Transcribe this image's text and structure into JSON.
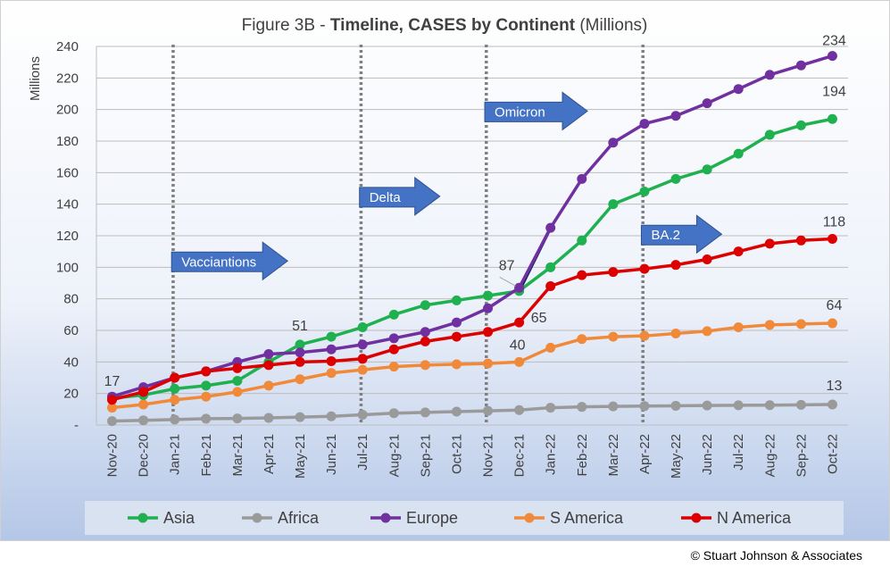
{
  "credit": "© Stuart Johnson & Associates",
  "colors": {
    "Asia": "#1fb04f",
    "Africa": "#9a9a9a",
    "Europe": "#7030a0",
    "S America": "#f08a3a",
    "N America": "#dd0000",
    "connector": "#0f2060",
    "arrow": "#4472c4",
    "grid": "#bdbdbd"
  },
  "chart_data": {
    "type": "line",
    "title_prefix": "Figure 3B - ",
    "title_bold": "Timeline, CASES by Continent",
    "title_suffix": " (Millions)",
    "ylabel": "Millions",
    "ylim": [
      0,
      240
    ],
    "y_ticks": [
      "-",
      "20",
      "40",
      "60",
      "80",
      "100",
      "120",
      "140",
      "160",
      "180",
      "200",
      "220",
      "240"
    ],
    "grid": true,
    "legend_position": "bottom",
    "categories": [
      "Nov-20",
      "Dec-20",
      "Jan-21",
      "Feb-21",
      "Mar-21",
      "Apr-21",
      "May-21",
      "Jun-21",
      "Jul-21",
      "Aug-21",
      "Sep-21",
      "Oct-21",
      "Nov-21",
      "Dec-21",
      "Jan-22",
      "Feb-22",
      "Mar-22",
      "Apr-22",
      "May-22",
      "Jun-22",
      "Jul-22",
      "Aug-22",
      "Sep-22",
      "Oct-22"
    ],
    "series": [
      {
        "name": "Asia",
        "values": [
          17,
          19,
          23,
          25,
          28,
          40,
          51,
          56,
          62,
          70,
          76,
          79,
          82,
          85,
          100,
          117,
          140,
          148,
          156,
          162,
          172,
          184,
          190,
          194
        ]
      },
      {
        "name": "Africa",
        "values": [
          2.5,
          3,
          3.5,
          4,
          4.2,
          4.5,
          5,
          5.5,
          6.5,
          7.5,
          8,
          8.5,
          9,
          9.5,
          11,
          11.5,
          11.8,
          12,
          12.2,
          12.4,
          12.5,
          12.6,
          12.8,
          13
        ]
      },
      {
        "name": "Europe",
        "values": [
          18,
          24,
          30,
          34,
          40,
          45,
          46,
          48,
          51,
          55,
          59,
          65,
          74,
          87,
          125,
          156,
          179,
          191,
          196,
          204,
          213,
          222,
          228,
          234
        ]
      },
      {
        "name": "S America",
        "values": [
          11,
          13,
          16,
          18,
          21,
          25,
          29,
          33,
          35,
          37,
          38,
          38.5,
          39,
          40,
          49,
          54.5,
          56,
          56.5,
          58,
          59.5,
          62,
          63.5,
          64,
          64.5
        ]
      },
      {
        "name": "N America",
        "values": [
          16,
          21,
          30,
          34,
          36,
          38,
          40,
          40.5,
          42,
          48,
          53,
          56,
          59,
          65,
          88,
          95,
          97,
          99,
          101.5,
          105,
          110,
          115,
          117,
          118
        ]
      }
    ],
    "connector": {
      "from_series": "Asia",
      "from_category": "Dec-21",
      "to_series": "Europe",
      "to_category": "Jan-22"
    },
    "vlines": [
      "Jan-21",
      "Jul-21",
      "Nov-21",
      "Apr-22"
    ],
    "annotations": [
      {
        "text": "Vacciantions",
        "category": "Jan-21",
        "y": 104
      },
      {
        "text": "Delta",
        "category": "Jul-21",
        "y": 145
      },
      {
        "text": "Omicron",
        "category": "Nov-21",
        "y": 199
      },
      {
        "text": "BA.2",
        "category": "Apr-22",
        "y": 121
      }
    ],
    "data_labels": [
      {
        "text": "17",
        "category": "Nov-20",
        "y": 17
      },
      {
        "text": "51",
        "category": "May-21",
        "y": 51
      },
      {
        "text": "40",
        "category": "Dec-21",
        "y": 40
      },
      {
        "text": "65",
        "category": "Dec-21",
        "y": 65
      },
      {
        "text": "87",
        "category": "Dec-21",
        "y": 87
      },
      {
        "text": "234",
        "category": "Oct-22",
        "y": 234
      },
      {
        "text": "194",
        "category": "Oct-22",
        "y": 194
      },
      {
        "text": "118",
        "category": "Oct-22",
        "y": 118
      },
      {
        "text": "64",
        "category": "Oct-22",
        "y": 64
      },
      {
        "text": "13",
        "category": "Oct-22",
        "y": 13
      }
    ]
  }
}
